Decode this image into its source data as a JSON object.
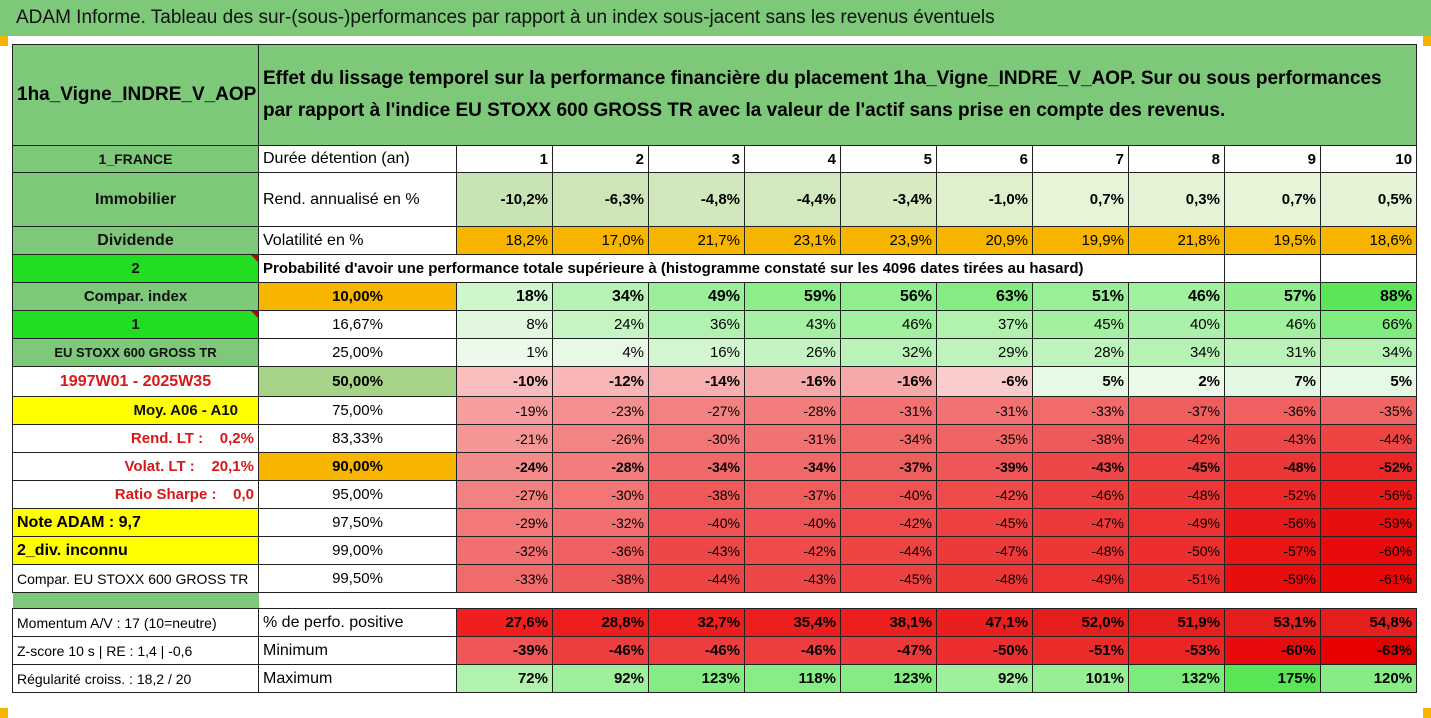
{
  "title": "ADAM Informe. Tableau des sur-(sous-)performances par rapport à un index sous-jacent sans les revenus éventuels",
  "header": {
    "asset": "1ha_Vigne_INDRE_V_AOP",
    "description": "Effet du lissage temporel sur la performance financière du placement 1ha_Vigne_INDRE_V_AOP. Sur ou sous performances par rapport à l'indice EU STOXX 600 GROSS TR avec la valeur de l'actif sans prise en compte des revenus."
  },
  "left": {
    "country": "1_FRANCE",
    "category": "Immobilier",
    "dividende": "Dividende",
    "two": "2",
    "compar_index": "Compar. index",
    "one": "1",
    "index_name": "EU STOXX 600 GROSS TR",
    "period": "1997W01 - 2025W35",
    "moy": "Moy. A06 - A10",
    "rend_lt": "Rend. LT :    0,2%",
    "volat_lt": "Volat. LT :    20,1%",
    "sharpe": "Ratio Sharpe :    0,0",
    "note": "Note ADAM : 9,7",
    "div": "2_div. inconnu",
    "compar_index_name": "Compar. EU STOXX 600 GROSS TR",
    "momentum": "Momentum A/V : 17 (10=neutre)",
    "zscore": "Z-score 10 s  |  RE : 1,4  |  -0,6",
    "regularite": "Régularité croiss. : 18,2 / 20"
  },
  "rows": {
    "duree_label": "Durée détention (an)",
    "years": [
      "1",
      "2",
      "3",
      "4",
      "5",
      "6",
      "7",
      "8",
      "9",
      "10"
    ],
    "rend_label": "Rend. annualisé en %",
    "rend": [
      "-10,2%",
      "-6,3%",
      "-4,8%",
      "-4,4%",
      "-3,4%",
      "-1,0%",
      "0,7%",
      "0,3%",
      "0,7%",
      "0,5%"
    ],
    "vol_label": "Volatilité en %",
    "vol": [
      "18,2%",
      "17,0%",
      "21,7%",
      "23,1%",
      "23,9%",
      "20,9%",
      "19,9%",
      "21,8%",
      "19,5%",
      "18,6%"
    ],
    "prob_label": "Probabilité d'avoir une performance totale supérieure à (histogramme constaté sur les 4096 dates tirées au hasard)",
    "quantiles": [
      {
        "p": "10,00%",
        "v": [
          "18%",
          "34%",
          "49%",
          "59%",
          "56%",
          "63%",
          "51%",
          "46%",
          "57%",
          "88%"
        ]
      },
      {
        "p": "16,67%",
        "v": [
          "8%",
          "24%",
          "36%",
          "43%",
          "46%",
          "37%",
          "45%",
          "40%",
          "46%",
          "66%"
        ]
      },
      {
        "p": "25,00%",
        "v": [
          "1%",
          "4%",
          "16%",
          "26%",
          "32%",
          "29%",
          "28%",
          "34%",
          "31%",
          "34%"
        ]
      },
      {
        "p": "50,00%",
        "v": [
          "-10%",
          "-12%",
          "-14%",
          "-16%",
          "-16%",
          "-6%",
          "5%",
          "2%",
          "7%",
          "5%"
        ]
      },
      {
        "p": "75,00%",
        "v": [
          "-19%",
          "-23%",
          "-27%",
          "-28%",
          "-31%",
          "-31%",
          "-33%",
          "-37%",
          "-36%",
          "-35%"
        ]
      },
      {
        "p": "83,33%",
        "v": [
          "-21%",
          "-26%",
          "-30%",
          "-31%",
          "-34%",
          "-35%",
          "-38%",
          "-42%",
          "-43%",
          "-44%"
        ]
      },
      {
        "p": "90,00%",
        "v": [
          "-24%",
          "-28%",
          "-34%",
          "-34%",
          "-37%",
          "-39%",
          "-43%",
          "-45%",
          "-48%",
          "-52%"
        ]
      },
      {
        "p": "95,00%",
        "v": [
          "-27%",
          "-30%",
          "-38%",
          "-37%",
          "-40%",
          "-42%",
          "-46%",
          "-48%",
          "-52%",
          "-56%"
        ]
      },
      {
        "p": "97,50%",
        "v": [
          "-29%",
          "-32%",
          "-40%",
          "-40%",
          "-42%",
          "-45%",
          "-47%",
          "-49%",
          "-56%",
          "-59%"
        ]
      },
      {
        "p": "99,00%",
        "v": [
          "-32%",
          "-36%",
          "-43%",
          "-42%",
          "-44%",
          "-47%",
          "-48%",
          "-50%",
          "-57%",
          "-60%"
        ]
      },
      {
        "p": "99,50%",
        "v": [
          "-33%",
          "-38%",
          "-44%",
          "-43%",
          "-45%",
          "-48%",
          "-49%",
          "-51%",
          "-59%",
          "-61%"
        ]
      }
    ],
    "pos_label": "% de perfo. positive",
    "pos": [
      "27,6%",
      "28,8%",
      "32,7%",
      "35,4%",
      "38,1%",
      "47,1%",
      "52,0%",
      "51,9%",
      "53,1%",
      "54,8%"
    ],
    "min_label": "Minimum",
    "min": [
      "-39%",
      "-46%",
      "-46%",
      "-46%",
      "-47%",
      "-50%",
      "-51%",
      "-53%",
      "-60%",
      "-63%"
    ],
    "max_label": "Maximum",
    "max": [
      "72%",
      "92%",
      "123%",
      "118%",
      "123%",
      "92%",
      "101%",
      "132%",
      "175%",
      "120%"
    ]
  },
  "colors": {
    "header_green": "#7ec87a",
    "highlight_orange": "#f7b500",
    "highlight_yellow": "#ffff00",
    "lime": "#22dd22",
    "label_red": "#d81818"
  }
}
